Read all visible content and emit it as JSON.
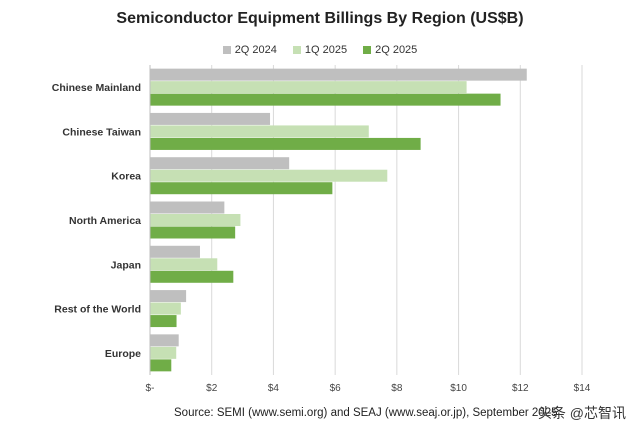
{
  "chart_data": {
    "type": "bar",
    "orientation": "horizontal",
    "title": "Semiconductor Equipment Billings By Region (US$B)",
    "categories": [
      "Chinese Mainland",
      "Chinese Taiwan",
      "Korea",
      "North America",
      "Japan",
      "Rest of the World",
      "Europe"
    ],
    "series": [
      {
        "name": "2Q 2024",
        "color": "#bfbfbf",
        "values": [
          12.21,
          3.89,
          4.51,
          2.41,
          1.62,
          1.17,
          0.93
        ]
      },
      {
        "name": "1Q 2025",
        "color": "#c6e0b4",
        "values": [
          10.26,
          7.09,
          7.69,
          2.93,
          2.18,
          1.0,
          0.85
        ]
      },
      {
        "name": "2Q 2025",
        "color": "#70ad47",
        "values": [
          11.36,
          8.77,
          5.91,
          2.76,
          2.7,
          0.86,
          0.69
        ]
      }
    ],
    "xlim": [
      0,
      14
    ],
    "xticks": [
      "$-",
      "$2",
      "$4",
      "$6",
      "$8",
      "$10",
      "$12",
      "$14"
    ],
    "grid": true,
    "legend_position": "top"
  },
  "source": "Source: SEMI (www.semi.org) and SEAJ (www.seaj.or.jp), September 2025",
  "watermark": "头条 @芯智讯"
}
